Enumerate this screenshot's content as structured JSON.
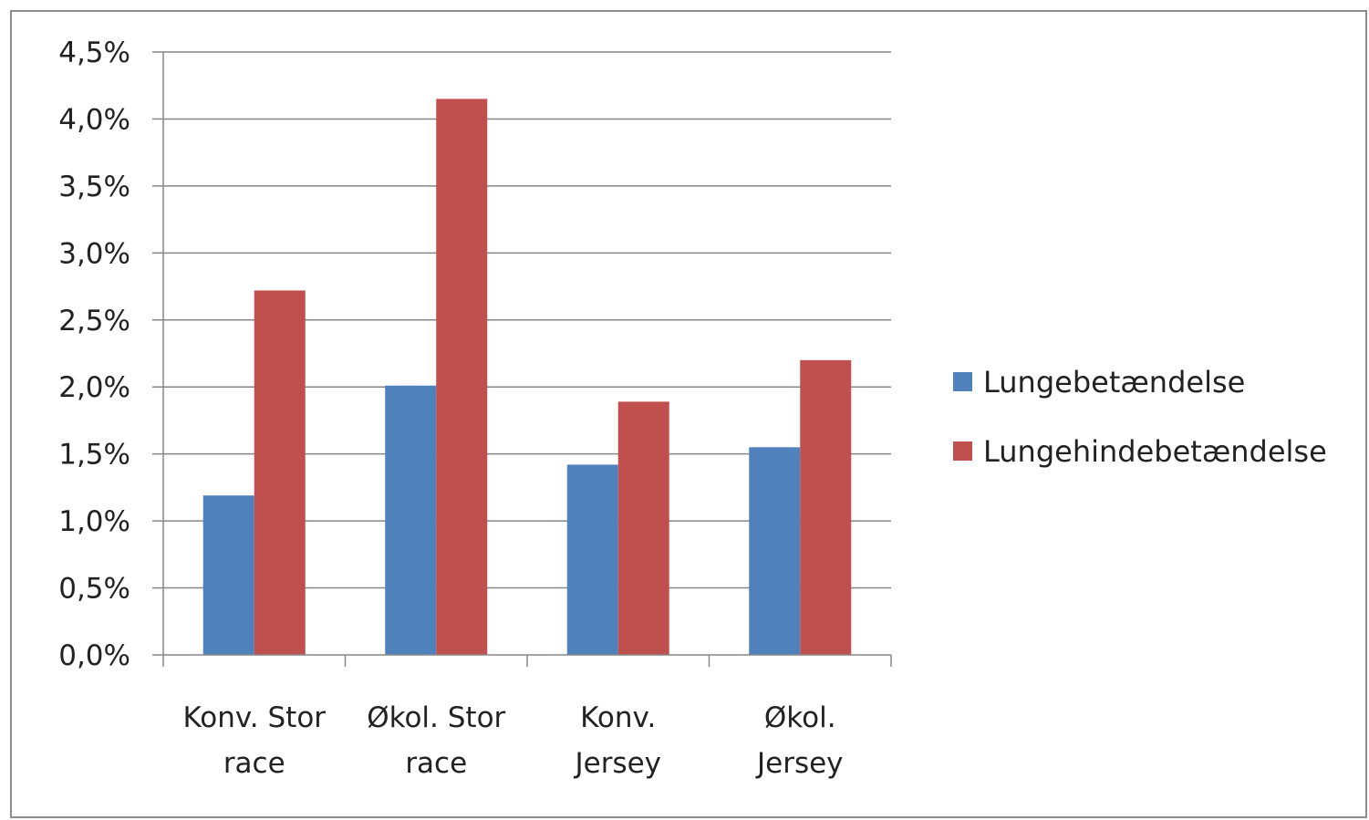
{
  "chart_data": {
    "type": "bar",
    "title": "",
    "xlabel": "",
    "ylabel": "",
    "categories": [
      [
        "Konv. Stor",
        "race"
      ],
      [
        "Økol. Stor",
        "race"
      ],
      [
        "Konv.",
        "Jersey"
      ],
      [
        "Økol.",
        "Jersey"
      ]
    ],
    "series": [
      {
        "name": "Lungebetændelse",
        "color": "#4f81bd",
        "values": [
          1.19,
          2.01,
          1.42,
          1.55
        ]
      },
      {
        "name": "Lungehindebetændelse",
        "color": "#c0504d",
        "values": [
          2.72,
          4.15,
          1.89,
          2.2
        ]
      }
    ],
    "ylim": [
      0,
      4.5
    ],
    "yticks": [
      0,
      0.5,
      1.0,
      1.5,
      2.0,
      2.5,
      3.0,
      3.5,
      4.0,
      4.5
    ],
    "ytick_labels": [
      "0,0%",
      "0,5%",
      "1,0%",
      "1,5%",
      "2,0%",
      "2,5%",
      "3,0%",
      "3,5%",
      "4,0%",
      "4,5%"
    ],
    "grid": true,
    "legend_position": "right"
  }
}
